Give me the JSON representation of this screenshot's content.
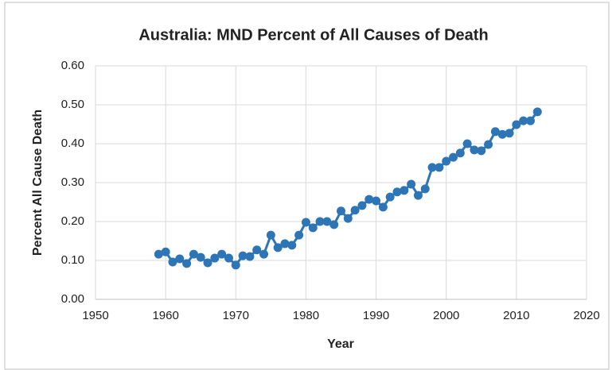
{
  "chart_data": {
    "type": "line",
    "title": "Australia: MND Percent of All Causes of Death",
    "x_label": "Year",
    "y_label": "Percent All Cause Death",
    "x": [
      1959,
      1960,
      1961,
      1962,
      1963,
      1964,
      1965,
      1966,
      1967,
      1968,
      1969,
      1970,
      1971,
      1972,
      1973,
      1974,
      1975,
      1976,
      1977,
      1978,
      1979,
      1980,
      1981,
      1982,
      1983,
      1984,
      1985,
      1986,
      1987,
      1988,
      1989,
      1990,
      1991,
      1992,
      1993,
      1994,
      1995,
      1996,
      1997,
      1998,
      1999,
      2000,
      2001,
      2002,
      2003,
      2004,
      2005,
      2006,
      2007,
      2008,
      2009,
      2010,
      2011,
      2012,
      2013
    ],
    "series": [
      {
        "name": "MND",
        "color": "#2e75b6",
        "values": [
          0.116,
          0.122,
          0.096,
          0.104,
          0.092,
          0.116,
          0.108,
          0.094,
          0.106,
          0.116,
          0.106,
          0.088,
          0.112,
          0.11,
          0.127,
          0.116,
          0.165,
          0.133,
          0.143,
          0.139,
          0.165,
          0.198,
          0.184,
          0.2,
          0.2,
          0.192,
          0.227,
          0.208,
          0.229,
          0.241,
          0.257,
          0.253,
          0.237,
          0.263,
          0.276,
          0.28,
          0.296,
          0.267,
          0.284,
          0.339,
          0.339,
          0.355,
          0.365,
          0.376,
          0.4,
          0.384,
          0.382,
          0.398,
          0.431,
          0.424,
          0.427,
          0.449,
          0.459,
          0.459,
          0.482
        ]
      }
    ],
    "xlim": [
      1950,
      2020
    ],
    "xticks": [
      1950,
      1960,
      1970,
      1980,
      1990,
      2000,
      2010,
      2020
    ],
    "ylim": [
      0,
      0.6
    ],
    "yticks": [
      {
        "value": 0,
        "label": "0.00"
      },
      {
        "value": 0.1,
        "label": "0.10"
      },
      {
        "value": 0.2,
        "label": "0.20"
      },
      {
        "value": 0.3,
        "label": "0.30"
      },
      {
        "value": 0.4,
        "label": "0.40"
      },
      {
        "value": 0.5,
        "label": "0.50"
      },
      {
        "value": 0.6,
        "label": "0.60"
      }
    ],
    "grid": true
  }
}
